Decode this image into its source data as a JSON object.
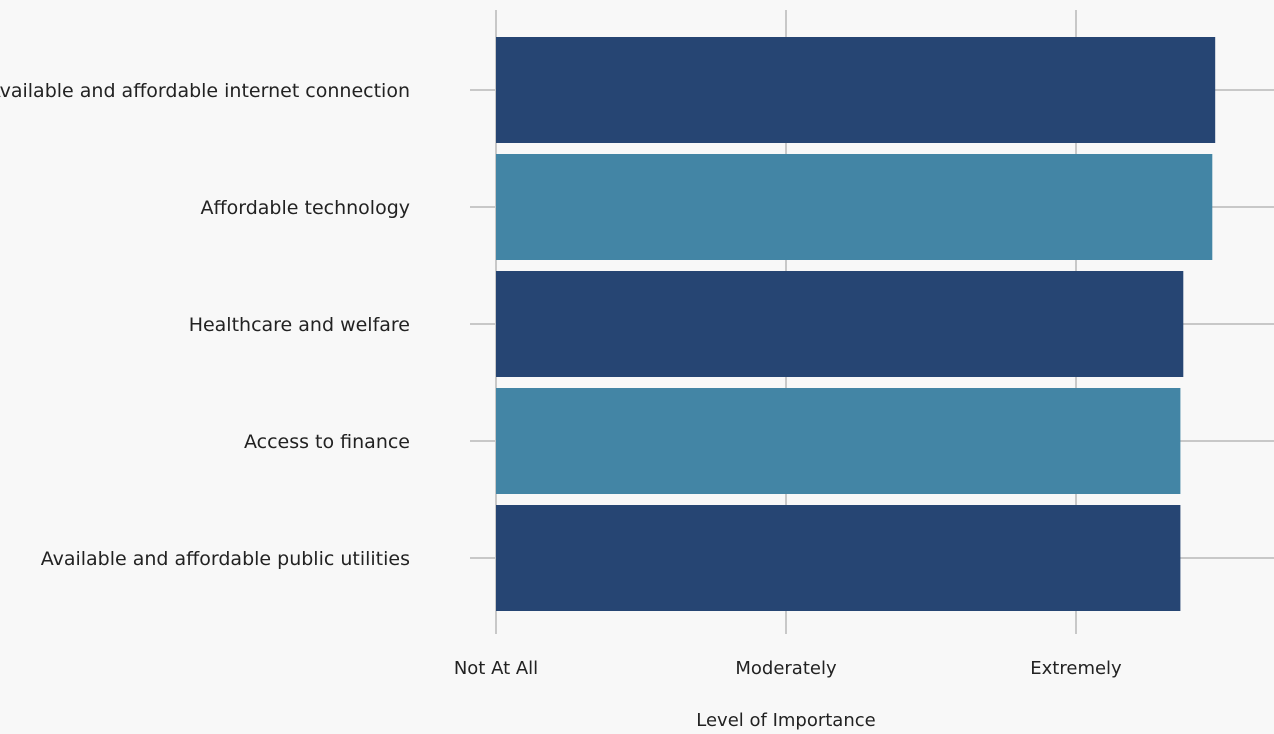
{
  "chart_data": {
    "type": "bar",
    "orientation": "horizontal",
    "categories": [
      "Available and affordable internet connection",
      "Affordable technology",
      "Healthcare and welfare",
      "Access to finance",
      "Available and affordable public utilities"
    ],
    "values": [
      2.48,
      2.47,
      2.37,
      2.36,
      2.36
    ],
    "xlabel": "Level of Importance",
    "ylabel": "",
    "xlim": [
      0,
      2.6
    ],
    "x_ticks": [
      {
        "value": 0,
        "label": "Not At All"
      },
      {
        "value": 1,
        "label": "Moderately"
      },
      {
        "value": 2,
        "label": "Extremely"
      }
    ],
    "colors": [
      "#264573",
      "#4385a5",
      "#264573",
      "#4385a5",
      "#264573"
    ],
    "grid": true
  }
}
